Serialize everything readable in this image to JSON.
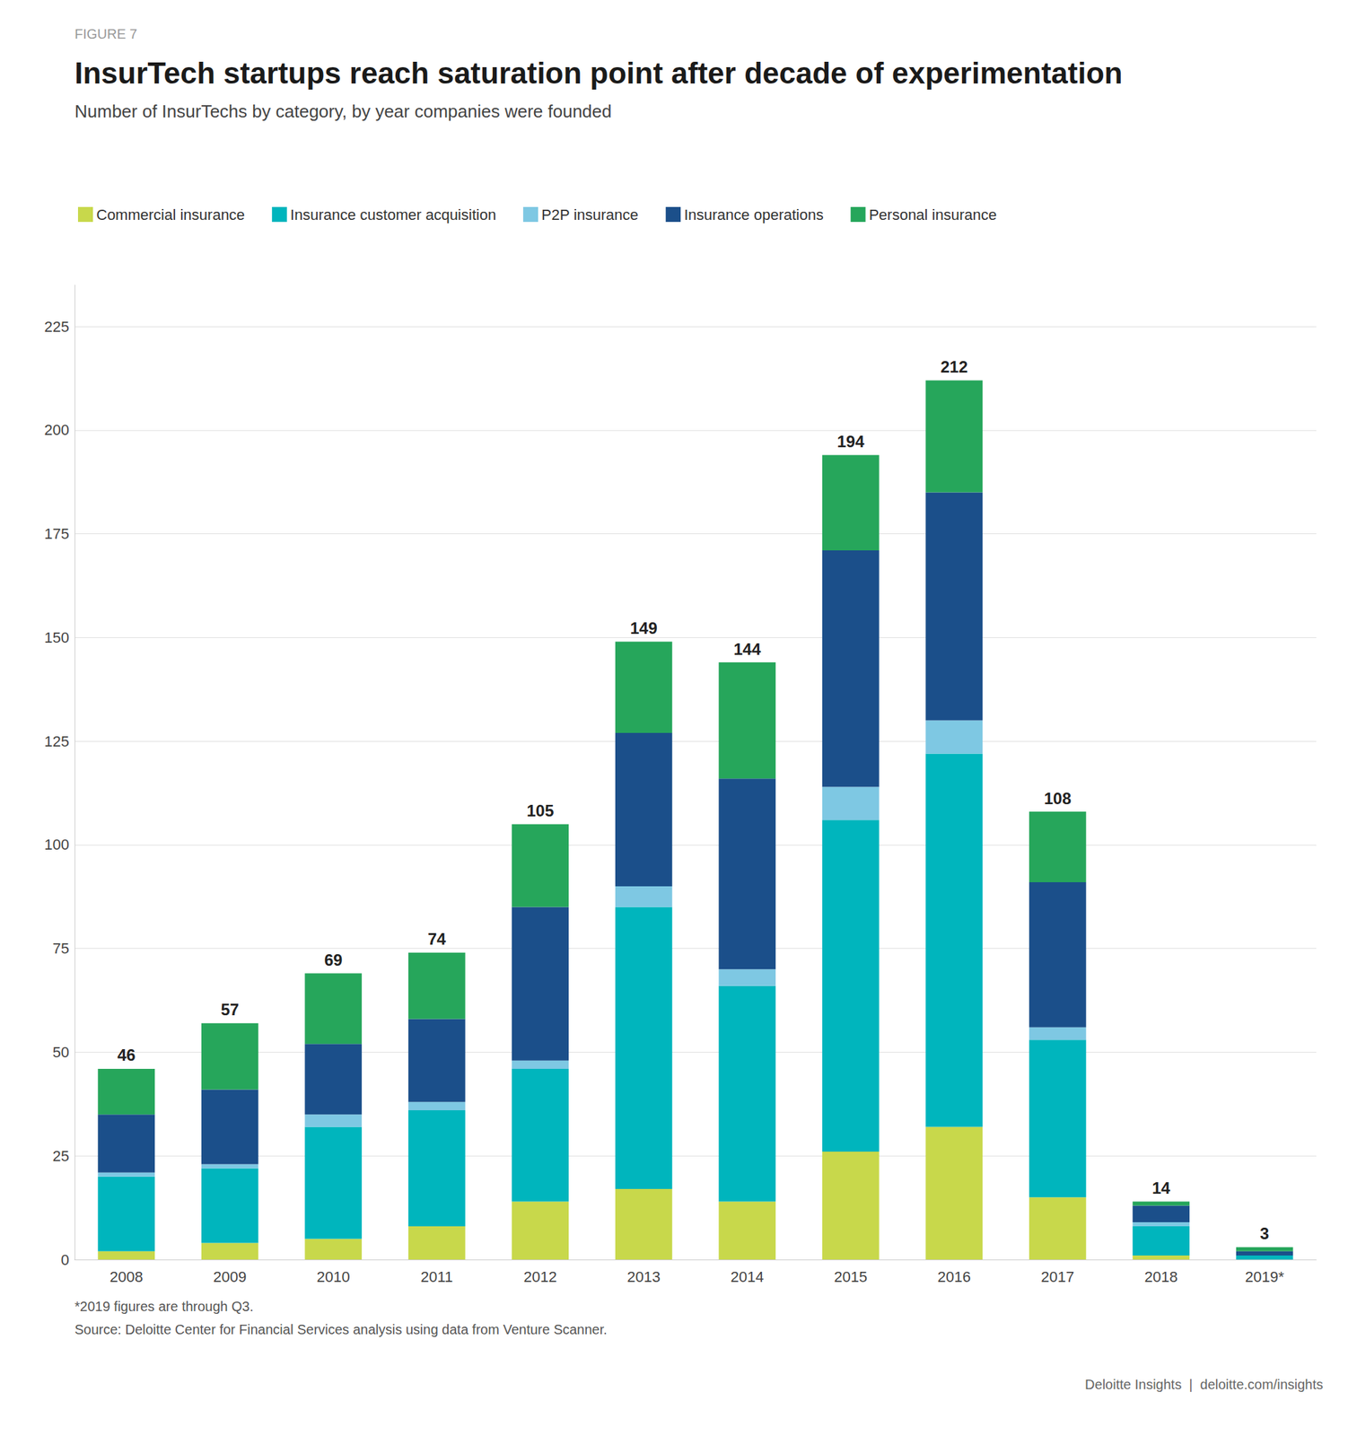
{
  "chart_data": {
    "type": "bar",
    "stacked": true,
    "title": "InsurTech startups reach saturation point after decade of experimentation",
    "subtitle": "Number of InsurTechs by category, by year companies were founded",
    "categories": [
      "2008",
      "2009",
      "2010",
      "2011",
      "2012",
      "2013",
      "2014",
      "2015",
      "2016",
      "2017",
      "2018",
      "2019*"
    ],
    "series": [
      {
        "name": "Commercial insurance",
        "color": "#c8d84b",
        "values": [
          2,
          4,
          5,
          8,
          14,
          17,
          14,
          26,
          32,
          15,
          1,
          0
        ]
      },
      {
        "name": "Insurance customer acquisition",
        "color": "#00b5bd",
        "values": [
          18,
          18,
          27,
          28,
          32,
          68,
          52,
          80,
          90,
          38,
          7,
          1
        ]
      },
      {
        "name": "P2P insurance",
        "color": "#7ec8e3",
        "values": [
          1,
          1,
          3,
          2,
          2,
          5,
          4,
          8,
          8,
          3,
          1,
          0
        ]
      },
      {
        "name": "Insurance operations",
        "color": "#1b4f8a",
        "values": [
          14,
          18,
          17,
          20,
          37,
          37,
          46,
          57,
          55,
          35,
          4,
          1
        ]
      },
      {
        "name": "Personal insurance",
        "color": "#26a65b",
        "values": [
          11,
          16,
          17,
          16,
          20,
          22,
          28,
          23,
          27,
          17,
          1,
          1
        ]
      }
    ],
    "totals": [
      46,
      57,
      69,
      74,
      105,
      149,
      144,
      194,
      212,
      108,
      14,
      3
    ],
    "ylim": [
      0,
      235
    ],
    "yticks": [
      0,
      25,
      50,
      75,
      100,
      125,
      150,
      175,
      200,
      225
    ],
    "grid": true,
    "legend": "top-left",
    "annotations": [
      "FIGURE 7",
      "*2019 figures are through Q3.",
      "Source: Deloitte Center for Financial Services analysis using data from Venture Scanner.",
      "Deloitte Insights  |  deloitte.com/insights"
    ]
  }
}
